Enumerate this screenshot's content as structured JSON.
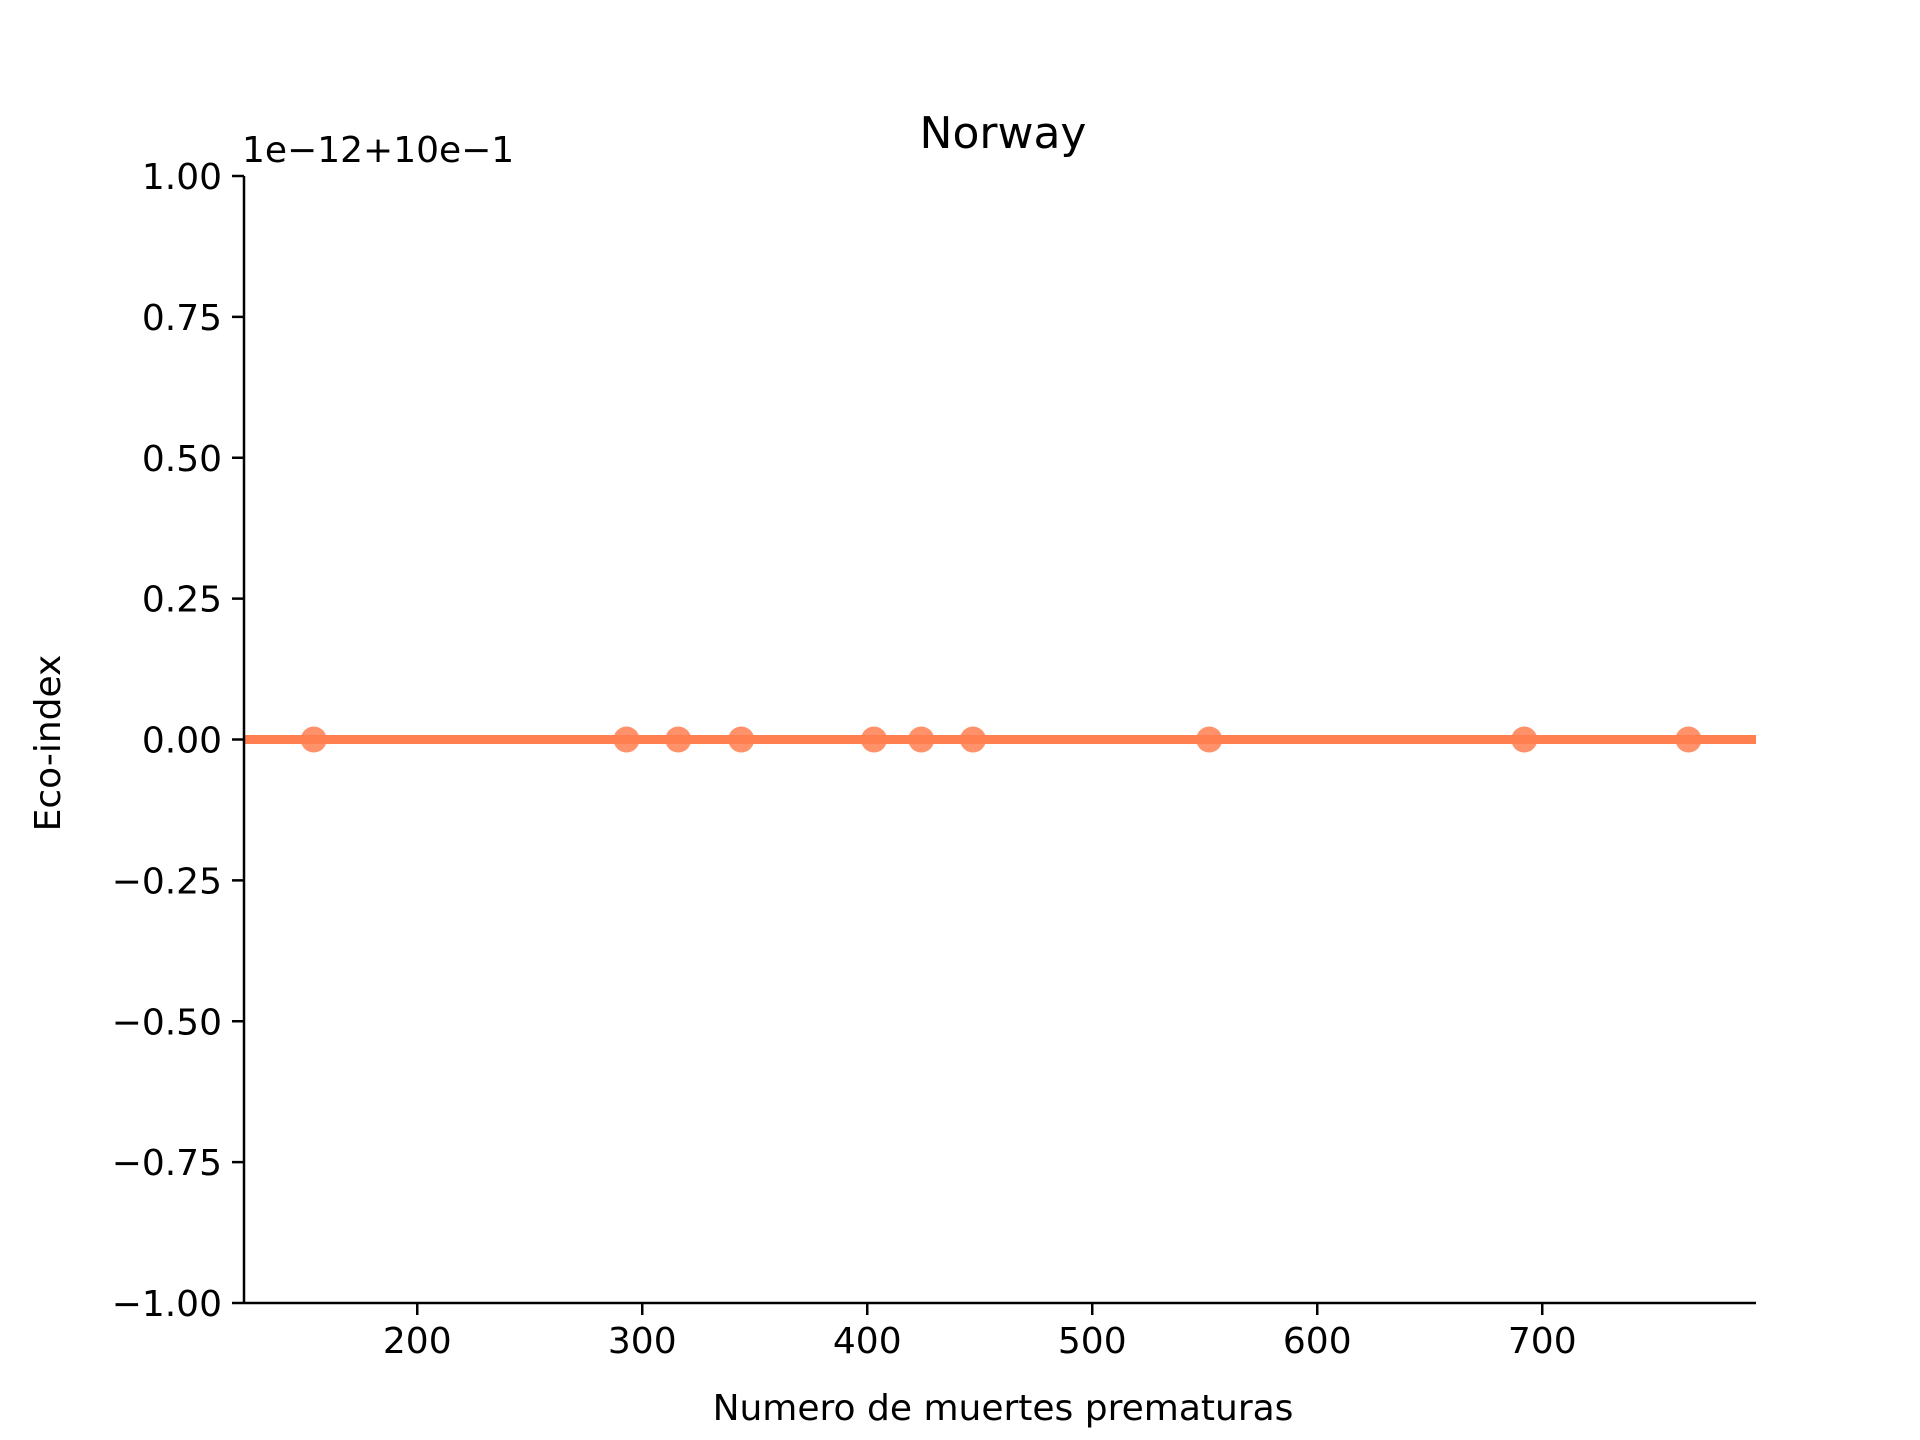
{
  "chart_data": {
    "type": "scatter",
    "title": "Norway",
    "xlabel": "Numero de muertes prematuras",
    "ylabel": "Eco-index",
    "offset_label": "1e−12+10e−1",
    "xlim": [
      123,
      795
    ],
    "ylim": [
      -1.0,
      1.0
    ],
    "xticks": [
      200,
      300,
      400,
      500,
      600,
      700
    ],
    "xtick_labels": [
      "200",
      "300",
      "400",
      "500",
      "600",
      "700"
    ],
    "yticks": [
      1.0,
      0.75,
      0.5,
      0.25,
      0.0,
      -0.25,
      -0.5,
      -0.75,
      -1.0
    ],
    "ytick_labels": [
      "1.00",
      "0.75",
      "0.50",
      "0.25",
      "0.00",
      "−0.25",
      "−0.50",
      "−0.75",
      "−1.00"
    ],
    "grid": false,
    "legend": "none",
    "points": {
      "x": [
        154,
        293,
        316,
        344,
        403,
        424,
        447,
        552,
        692,
        765
      ],
      "y": [
        0,
        0,
        0,
        0,
        0,
        0,
        0,
        0,
        0,
        0
      ]
    },
    "fit_line": {
      "x": [
        123,
        795
      ],
      "y": [
        0,
        0
      ]
    },
    "color": "#ff7f50"
  }
}
